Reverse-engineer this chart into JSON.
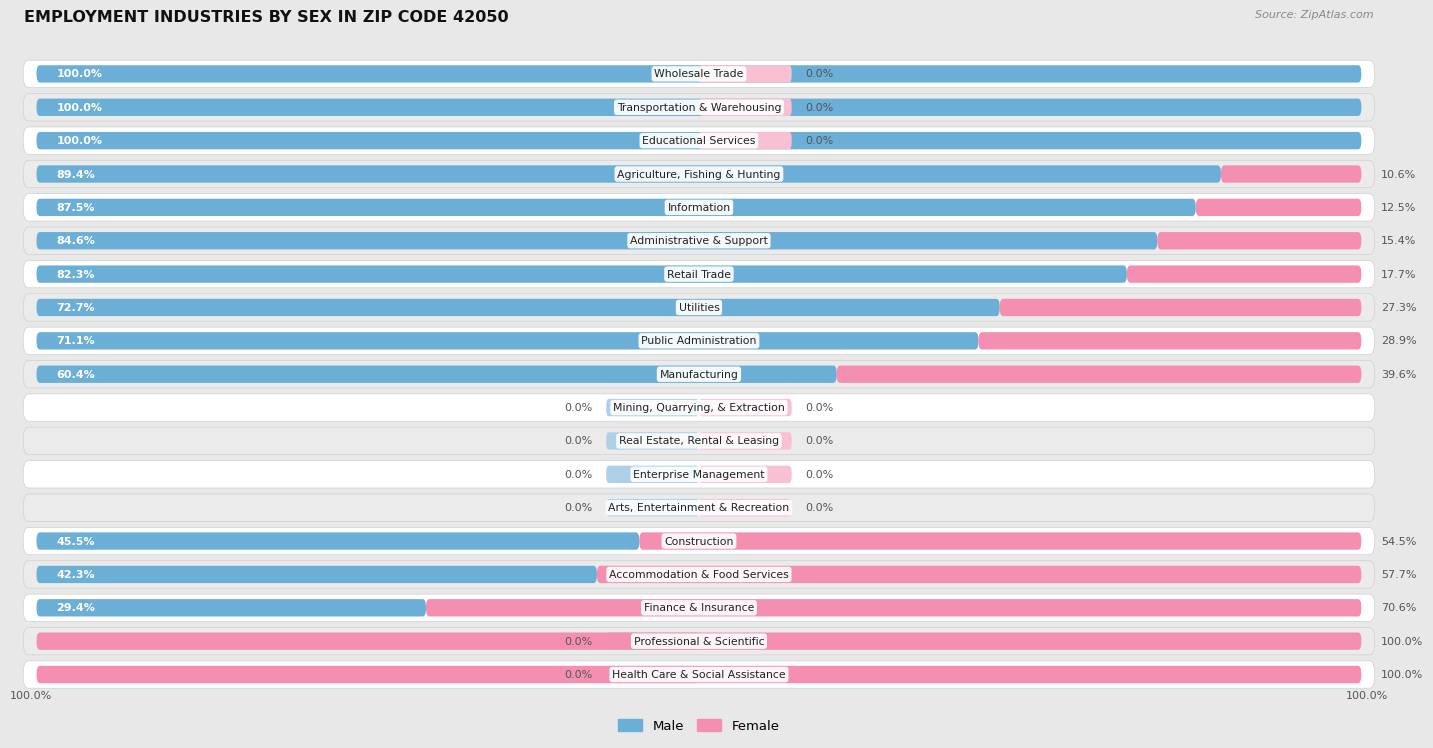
{
  "title": "EMPLOYMENT INDUSTRIES BY SEX IN ZIP CODE 42050",
  "source": "Source: ZipAtlas.com",
  "male_color": "#6baed6",
  "female_color": "#f48fb1",
  "male_color_light": "#aecfe8",
  "female_color_light": "#f9c0d3",
  "row_bg_color": "#ffffff",
  "alt_row_bg_color": "#ebebeb",
  "row_border_color": "#d0d0d0",
  "background_color": "#e8e8e8",
  "categories": [
    "Wholesale Trade",
    "Transportation & Warehousing",
    "Educational Services",
    "Agriculture, Fishing & Hunting",
    "Information",
    "Administrative & Support",
    "Retail Trade",
    "Utilities",
    "Public Administration",
    "Manufacturing",
    "Mining, Quarrying, & Extraction",
    "Real Estate, Rental & Leasing",
    "Enterprise Management",
    "Arts, Entertainment & Recreation",
    "Construction",
    "Accommodation & Food Services",
    "Finance & Insurance",
    "Professional & Scientific",
    "Health Care & Social Assistance"
  ],
  "male_pct": [
    100.0,
    100.0,
    100.0,
    89.4,
    87.5,
    84.6,
    82.3,
    72.7,
    71.1,
    60.4,
    0.0,
    0.0,
    0.0,
    0.0,
    45.5,
    42.3,
    29.4,
    0.0,
    0.0
  ],
  "female_pct": [
    0.0,
    0.0,
    0.0,
    10.6,
    12.5,
    15.4,
    17.7,
    27.3,
    28.9,
    39.6,
    0.0,
    0.0,
    0.0,
    0.0,
    54.5,
    57.7,
    70.6,
    100.0,
    100.0
  ]
}
